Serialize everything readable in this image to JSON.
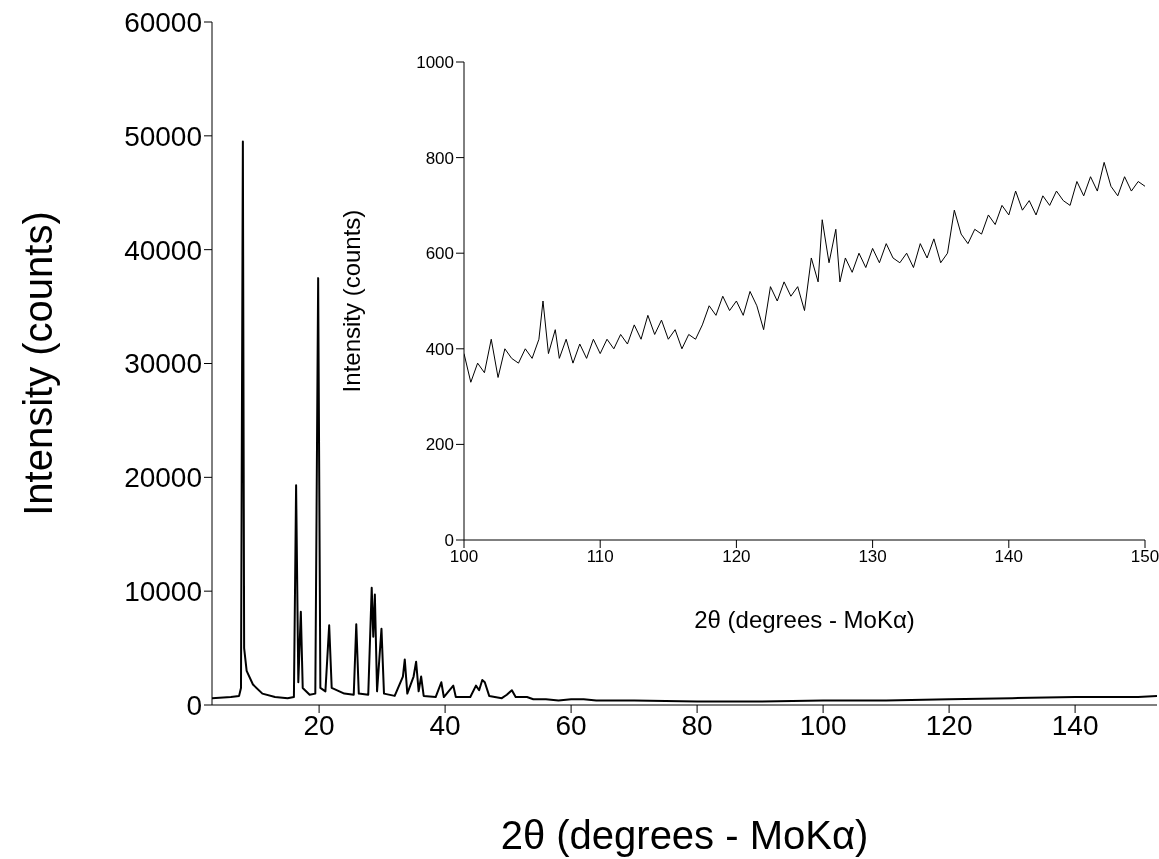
{
  "chart_data": [
    {
      "type": "line",
      "xlabel": "2θ (degrees - MoKα)",
      "ylabel": "Intensity (counts)",
      "xlim": [
        3,
        153
      ],
      "xticks": [
        20,
        40,
        60,
        80,
        100,
        120,
        140
      ],
      "ylim": [
        0,
        60000
      ],
      "yticks": [
        0,
        10000,
        20000,
        30000,
        40000,
        50000,
        60000
      ],
      "grid": false,
      "legend": false,
      "series": [
        {
          "color": "#000000",
          "x": [
            3,
            6,
            7.3,
            7.6,
            7.9,
            8.1,
            8.5,
            9.5,
            11,
            13,
            15,
            16,
            16.35,
            16.7,
            17.1,
            17.4,
            18.5,
            19.4,
            19.85,
            20.2,
            21,
            21.6,
            22,
            24,
            25.5,
            25.9,
            26.3,
            27.8,
            28.35,
            28.6,
            28.85,
            29.2,
            29.9,
            30.3,
            32,
            33.3,
            33.6,
            34,
            35,
            35.4,
            35.8,
            36.2,
            36.6,
            38.5,
            39.4,
            39.8,
            41.3,
            41.7,
            44,
            44.9,
            45.4,
            45.9,
            46.3,
            47,
            49,
            49.8,
            50.6,
            51.2,
            53,
            54,
            56,
            58,
            60,
            62,
            64,
            66,
            70,
            80,
            90,
            100,
            110,
            120,
            130,
            140,
            150,
            153
          ],
          "values": [
            600,
            700,
            800,
            1500,
            49500,
            5000,
            3000,
            1800,
            1000,
            700,
            600,
            700,
            19300,
            2000,
            8200,
            1500,
            900,
            1000,
            37500,
            1500,
            1200,
            7000,
            1500,
            1000,
            900,
            7100,
            1000,
            900,
            10300,
            6000,
            9700,
            1200,
            6700,
            1000,
            800,
            2500,
            4000,
            1000,
            2500,
            3800,
            1200,
            2500,
            800,
            700,
            2000,
            700,
            1700,
            700,
            700,
            1700,
            1300,
            2200,
            2000,
            800,
            600,
            900,
            1300,
            700,
            700,
            500,
            500,
            400,
            500,
            500,
            400,
            400,
            400,
            300,
            300,
            400,
            400,
            500,
            600,
            700,
            700,
            800
          ]
        }
      ]
    },
    {
      "type": "line",
      "xlabel": "2θ (degrees - MoKα)",
      "ylabel": "Intensity (counts)",
      "xlim": [
        100,
        150
      ],
      "xticks": [
        100,
        110,
        120,
        130,
        140,
        150
      ],
      "ylim": [
        0,
        1000
      ],
      "yticks": [
        0,
        200,
        400,
        600,
        800,
        1000
      ],
      "grid": false,
      "legend": false,
      "series": [
        {
          "color": "#000000",
          "x": [
            100,
            100.5,
            101,
            101.5,
            102,
            102.5,
            103,
            103.5,
            104,
            104.5,
            105,
            105.5,
            105.8,
            106.2,
            106.7,
            107,
            107.5,
            108,
            108.5,
            109,
            109.5,
            110,
            110.5,
            111,
            111.5,
            112,
            112.5,
            113,
            113.5,
            114,
            114.5,
            115,
            115.5,
            116,
            116.5,
            117,
            117.5,
            118,
            118.5,
            119,
            119.5,
            120,
            120.5,
            121,
            121.5,
            122,
            122.5,
            123,
            123.5,
            124,
            124.5,
            125,
            125.5,
            126,
            126.3,
            126.8,
            127.3,
            127.6,
            128,
            128.5,
            129,
            129.5,
            130,
            130.5,
            131,
            131.5,
            132,
            132.5,
            133,
            133.5,
            134,
            134.5,
            135,
            135.5,
            136,
            136.5,
            137,
            137.5,
            138,
            138.5,
            139,
            139.5,
            140,
            140.5,
            141,
            141.5,
            142,
            142.5,
            143,
            143.5,
            144,
            144.5,
            145,
            145.5,
            146,
            146.5,
            147,
            147.5,
            148,
            148.5,
            149,
            149.5,
            150
          ],
          "values": [
            390,
            330,
            370,
            350,
            420,
            340,
            400,
            380,
            370,
            400,
            380,
            420,
            500,
            390,
            440,
            380,
            420,
            370,
            410,
            380,
            420,
            390,
            420,
            400,
            430,
            410,
            450,
            420,
            470,
            430,
            460,
            420,
            440,
            400,
            430,
            420,
            450,
            490,
            470,
            510,
            480,
            500,
            470,
            520,
            490,
            440,
            530,
            500,
            540,
            510,
            530,
            480,
            590,
            540,
            670,
            580,
            650,
            540,
            590,
            560,
            600,
            570,
            610,
            580,
            620,
            590,
            580,
            600,
            570,
            620,
            590,
            630,
            580,
            600,
            690,
            640,
            620,
            650,
            640,
            680,
            660,
            700,
            680,
            730,
            690,
            710,
            680,
            720,
            700,
            730,
            710,
            700,
            750,
            720,
            760,
            730,
            790,
            740,
            720,
            760,
            730,
            750,
            740
          ]
        }
      ]
    }
  ]
}
